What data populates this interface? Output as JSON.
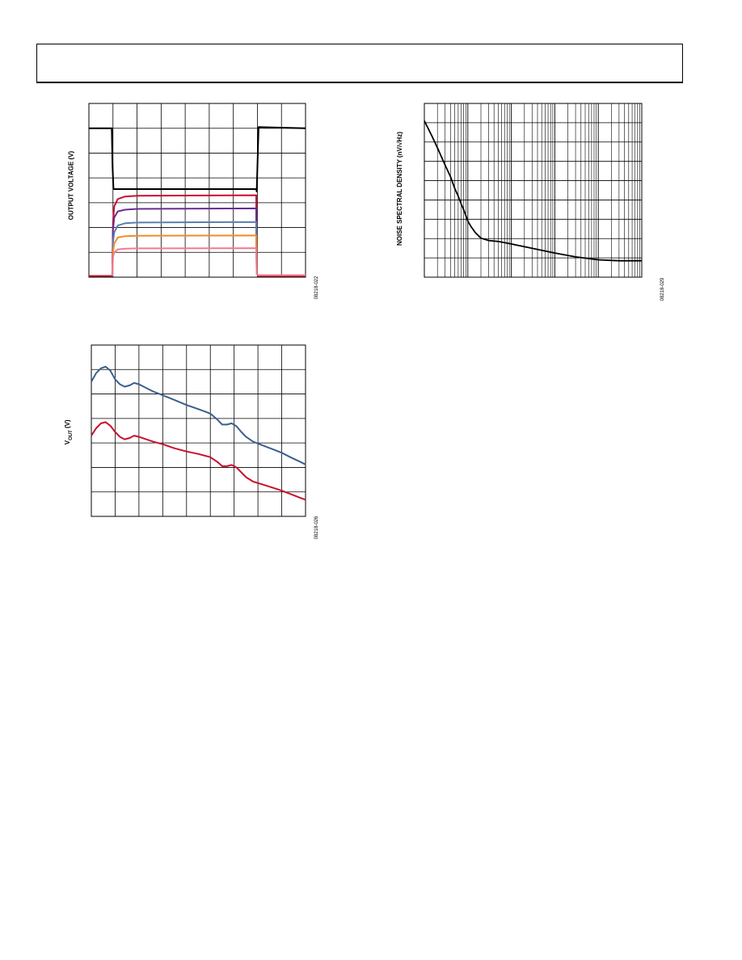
{
  "page": {
    "header_text": ""
  },
  "chart_data": [
    {
      "type": "line",
      "ylabel": "OUTPUT VOLTAGE (V)",
      "figure_id": "08218-022",
      "grid": {
        "x_divisions": 9,
        "y_divisions": 7
      },
      "xlim": [
        0,
        9
      ],
      "ylim": [
        0,
        7
      ],
      "series": [
        {
          "color": "#000000",
          "x": [
            0,
            0.95,
            0.98,
            1.02,
            6.95,
            6.97,
            7.05,
            9
          ],
          "y": [
            6.0,
            6.0,
            4.5,
            3.55,
            3.55,
            3.45,
            6.05,
            6.0
          ]
        },
        {
          "color": "#c8102e",
          "x": [
            0,
            0.97,
            1.0,
            1.05,
            1.2,
            1.5,
            2.0,
            6.95,
            6.97,
            7.05,
            9
          ],
          "y": [
            0.05,
            0.05,
            2.2,
            2.85,
            3.15,
            3.25,
            3.28,
            3.3,
            0.15,
            0.05,
            0.05
          ]
        },
        {
          "color": "#6a2c91",
          "x": [
            0.97,
            1.0,
            1.05,
            1.2,
            1.5,
            2.0,
            6.95,
            6.97
          ],
          "y": [
            0.05,
            1.9,
            2.4,
            2.65,
            2.72,
            2.75,
            2.77,
            0.1
          ]
        },
        {
          "color": "#5b7fb0",
          "x": [
            0.97,
            1.0,
            1.05,
            1.2,
            1.5,
            2.0,
            6.95,
            6.97
          ],
          "y": [
            0.05,
            1.4,
            1.8,
            2.08,
            2.17,
            2.2,
            2.22,
            0.1
          ]
        },
        {
          "color": "#f28c28",
          "x": [
            0.97,
            1.0,
            1.05,
            1.2,
            1.5,
            2.0,
            6.95,
            6.97
          ],
          "y": [
            0.05,
            1.0,
            1.35,
            1.6,
            1.65,
            1.67,
            1.68,
            0.1
          ]
        },
        {
          "color": "#f47c8f",
          "x": [
            0.97,
            1.0,
            1.05,
            1.2,
            1.5,
            2.0,
            6.95,
            6.97,
            7.05,
            9
          ],
          "y": [
            0.05,
            0.8,
            1.0,
            1.12,
            1.15,
            1.16,
            1.17,
            0.12,
            0.08,
            0.08
          ]
        }
      ]
    },
    {
      "type": "line",
      "ylabel": "NOISE SPECTRAL DENSITY (nV/√Hz)",
      "figure_id": "08218-029",
      "scale": {
        "x": "log",
        "y": "linear"
      },
      "grid": {
        "x_decades": 5,
        "y_divisions": 9
      },
      "xlim": [
        1,
        100000
      ],
      "ylim": [
        0,
        9
      ],
      "series": [
        {
          "color": "#000000",
          "x": [
            1,
            1.5,
            2,
            3,
            4,
            5,
            6,
            7,
            8,
            9,
            10,
            12,
            15,
            20,
            30,
            50,
            100,
            300,
            1000,
            3000,
            10000,
            30000,
            100000
          ],
          "y": [
            8.1,
            7.3,
            6.7,
            5.8,
            5.2,
            4.6,
            4.2,
            3.8,
            3.5,
            3.2,
            2.9,
            2.6,
            2.3,
            2.02,
            1.9,
            1.85,
            1.72,
            1.5,
            1.25,
            1.05,
            0.9,
            0.85,
            0.85
          ]
        }
      ]
    },
    {
      "type": "line",
      "ylabel": "VOUT (V)",
      "figure_id": "08218-026",
      "grid": {
        "x_divisions": 9,
        "y_divisions": 7
      },
      "xlim": [
        0,
        9
      ],
      "ylim": [
        0,
        7
      ],
      "series": [
        {
          "color": "#3a5f8f",
          "x": [
            0,
            0.2,
            0.4,
            0.6,
            0.8,
            1.0,
            1.2,
            1.4,
            1.6,
            1.8,
            2.0,
            2.3,
            2.6,
            3.0,
            3.5,
            4.0,
            4.5,
            5.0,
            5.3,
            5.5,
            5.7,
            5.9,
            6.1,
            6.3,
            6.5,
            6.8,
            7.2,
            7.6,
            8.0,
            8.4,
            8.8,
            9.0
          ],
          "y": [
            5.5,
            5.85,
            6.05,
            6.12,
            5.95,
            5.6,
            5.4,
            5.3,
            5.35,
            5.45,
            5.4,
            5.25,
            5.1,
            4.95,
            4.75,
            4.55,
            4.38,
            4.2,
            3.95,
            3.75,
            3.75,
            3.8,
            3.68,
            3.45,
            3.25,
            3.05,
            2.9,
            2.75,
            2.6,
            2.4,
            2.22,
            2.12
          ]
        },
        {
          "color": "#c8102e",
          "x": [
            0,
            0.2,
            0.4,
            0.6,
            0.8,
            1.0,
            1.2,
            1.4,
            1.6,
            1.8,
            2.0,
            2.3,
            2.6,
            3.0,
            3.5,
            4.0,
            4.5,
            5.0,
            5.3,
            5.5,
            5.7,
            5.9,
            6.1,
            6.3,
            6.5,
            6.8,
            7.2,
            7.6,
            8.0,
            8.4,
            8.8,
            9.0
          ],
          "y": [
            3.3,
            3.6,
            3.8,
            3.85,
            3.7,
            3.45,
            3.25,
            3.15,
            3.2,
            3.3,
            3.25,
            3.15,
            3.05,
            2.95,
            2.78,
            2.65,
            2.55,
            2.42,
            2.22,
            2.05,
            2.05,
            2.1,
            2.0,
            1.8,
            1.6,
            1.42,
            1.3,
            1.18,
            1.05,
            0.9,
            0.75,
            0.68
          ]
        }
      ]
    }
  ]
}
